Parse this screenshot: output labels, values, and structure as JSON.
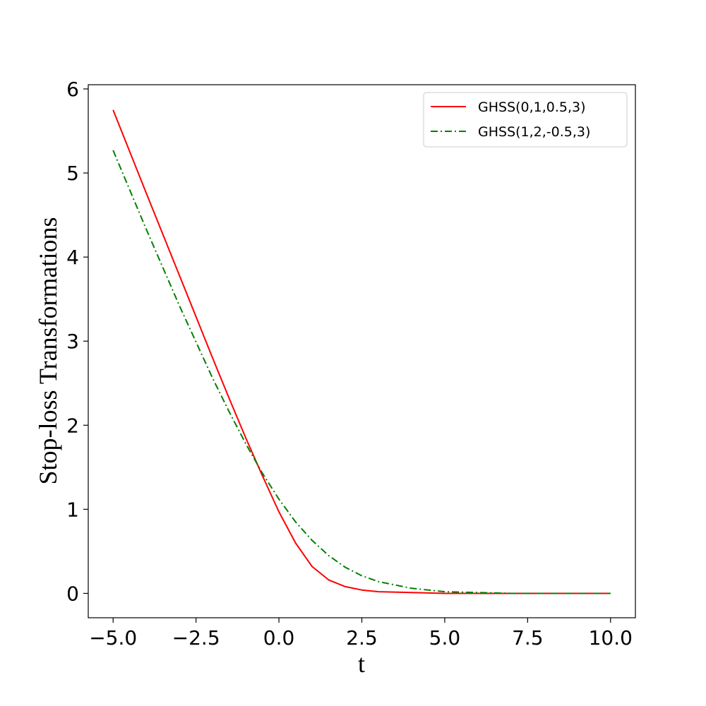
{
  "chart_data": {
    "type": "line",
    "xlabel": "t",
    "ylabel": "Stop-loss Transformations",
    "xlim": [
      -5.75,
      10.75
    ],
    "ylim": [
      -0.29,
      6.05
    ],
    "xticks": [
      -5.0,
      -2.5,
      0.0,
      2.5,
      5.0,
      7.5,
      10.0
    ],
    "xtick_labels": [
      "−5.0",
      "−2.5",
      "0.0",
      "2.5",
      "5.0",
      "7.5",
      "10.0"
    ],
    "yticks": [
      0,
      1,
      2,
      3,
      4,
      5,
      6
    ],
    "ytick_labels": [
      "0",
      "1",
      "2",
      "3",
      "4",
      "5",
      "6"
    ],
    "grid": false,
    "legend_position": "top-right",
    "series": [
      {
        "name": "GHSS(0,1,0.5,3)",
        "color": "#ff0000",
        "style": "solid",
        "x": [
          -5,
          -4,
          -3,
          -2,
          -1.5,
          -1,
          -0.5,
          0,
          0.5,
          1,
          1.5,
          2,
          2.5,
          3,
          4,
          5,
          6,
          7,
          8,
          10
        ],
        "y": [
          5.75,
          4.76,
          3.78,
          2.8,
          2.32,
          1.85,
          1.4,
          0.97,
          0.6,
          0.32,
          0.16,
          0.08,
          0.04,
          0.02,
          0.01,
          0.0,
          0.0,
          0.0,
          0.0,
          0.0
        ]
      },
      {
        "name": "GHSS(1,2,-0.5,3)",
        "color": "#008000",
        "style": "dashdot",
        "x": [
          -5,
          -4,
          -3,
          -2,
          -1.5,
          -1,
          -0.5,
          0,
          0.5,
          1,
          1.5,
          2,
          2.5,
          3,
          4,
          5,
          6,
          7,
          8,
          10
        ],
        "y": [
          5.27,
          4.33,
          3.42,
          2.56,
          2.16,
          1.78,
          1.43,
          1.12,
          0.85,
          0.63,
          0.45,
          0.31,
          0.21,
          0.14,
          0.06,
          0.02,
          0.01,
          0.0,
          0.0,
          0.0
        ]
      }
    ]
  }
}
